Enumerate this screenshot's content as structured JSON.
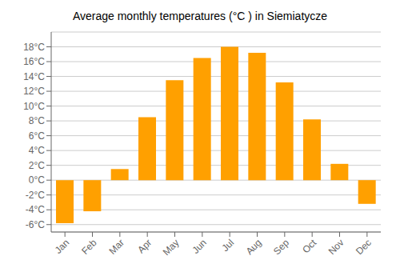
{
  "chart_data": {
    "type": "bar",
    "title": "Average monthly temperatures (°C ) in Siemiatycze",
    "categories": [
      "Jan",
      "Feb",
      "Mar",
      "Apr",
      "May",
      "Jun",
      "Jul",
      "Aug",
      "Sep",
      "Oct",
      "Nov",
      "Dec"
    ],
    "values": [
      -5.8,
      -4.2,
      1.5,
      8.5,
      13.5,
      16.5,
      18.0,
      17.2,
      13.2,
      8.2,
      2.2,
      -3.2
    ],
    "color": "#FFA000",
    "ylim": [
      -7,
      20
    ],
    "yticks": [
      {
        "value": -6,
        "label": "-6°C"
      },
      {
        "value": -4,
        "label": "-4°C"
      },
      {
        "value": -2,
        "label": "-2°C"
      },
      {
        "value": 0,
        "label": "0°C"
      },
      {
        "value": 2,
        "label": "2°C"
      },
      {
        "value": 4,
        "label": "4°C"
      },
      {
        "value": 6,
        "label": "6°C"
      },
      {
        "value": 8,
        "label": "8°C"
      },
      {
        "value": 10,
        "label": "10°C"
      },
      {
        "value": 12,
        "label": "12°C"
      },
      {
        "value": 14,
        "label": "14°C"
      },
      {
        "value": 16,
        "label": "16°C"
      },
      {
        "value": 18,
        "label": "18°C"
      }
    ],
    "grid": true
  }
}
